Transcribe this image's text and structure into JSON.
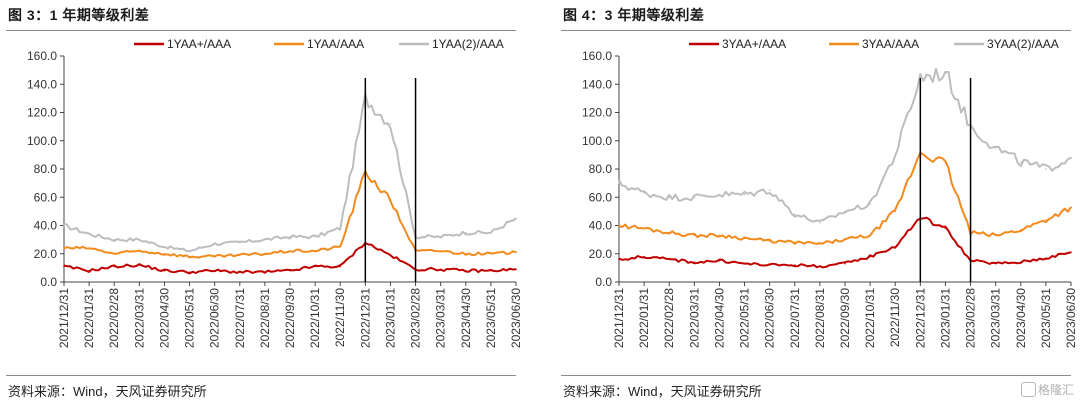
{
  "panels": [
    {
      "title": "图 3：1 年期等级利差",
      "source": "资料来源：Wind，天风证券研究所",
      "chart_data": {
        "type": "line",
        "x": [
          "2021/12/31",
          "2022/01/31",
          "2022/02/28",
          "2022/03/31",
          "2022/04/30",
          "2022/05/31",
          "2022/06/30",
          "2022/07/31",
          "2022/08/31",
          "2022/09/30",
          "2022/10/31",
          "2022/11/30",
          "2022/12/31",
          "2023/01/31",
          "2023/02/28",
          "2023/03/31",
          "2023/04/30",
          "2023/05/31",
          "2023/06/30"
        ],
        "ylim": [
          0,
          160
        ],
        "yticks": [
          "0.0",
          "20.0",
          "40.0",
          "60.0",
          "80.0",
          "100.0",
          "120.0",
          "140.0",
          "160.0"
        ],
        "legend": "top",
        "grid": false,
        "vlines": [
          "2022/12/31",
          "2023/02/28"
        ],
        "series": [
          {
            "name": "1YAA+/AAA",
            "color": "#c00000",
            "values": [
              11,
              8,
              11,
              12,
              8,
              7,
              8,
              7,
              7,
              8,
              11,
              11,
              28,
              19,
              9,
              9,
              8,
              8,
              9
            ]
          },
          {
            "name": "1YAA/AAA",
            "color": "#f28a1c",
            "values": [
              24,
              24,
              20,
              22,
              20,
              18,
              18,
              19,
              20,
              22,
              22,
              25,
              78,
              58,
              22,
              22,
              20,
              20,
              21
            ]
          },
          {
            "name": "1YAA(2)/AAA",
            "color": "#bdbdbd",
            "values": [
              40,
              34,
              30,
              30,
              25,
              22,
              27,
              28,
              30,
              32,
              32,
              38,
              130,
              112,
              32,
              32,
              35,
              35,
              45
            ]
          }
        ]
      }
    },
    {
      "title": "图 4：3 年期等级利差",
      "source": "资料来源：Wind，天风证券研究所",
      "chart_data": {
        "type": "line",
        "x": [
          "2021/12/31",
          "2022/01/31",
          "2022/02/28",
          "2022/03/31",
          "2022/04/30",
          "2022/05/31",
          "2022/06/30",
          "2022/07/31",
          "2022/08/31",
          "2022/09/30",
          "2022/10/31",
          "2022/11/30",
          "2022/12/31",
          "2023/01/31",
          "2023/02/28",
          "2023/03/31",
          "2023/04/30",
          "2023/05/31",
          "2023/06/30"
        ],
        "ylim": [
          0,
          160
        ],
        "yticks": [
          "0.0",
          "20.0",
          "40.0",
          "60.0",
          "80.0",
          "100.0",
          "120.0",
          "140.0",
          "160.0"
        ],
        "legend": "top",
        "grid": false,
        "vlines": [
          "2022/12/31",
          "2023/02/28"
        ],
        "series": [
          {
            "name": "3YAA+/AAA",
            "color": "#c00000",
            "values": [
              16,
              18,
              16,
              14,
              15,
              13,
              12,
              12,
              11,
              13,
              18,
              25,
              46,
              38,
              15,
              13,
              14,
              17,
              21
            ]
          },
          {
            "name": "3YAA/AAA",
            "color": "#f28a1c",
            "values": [
              40,
              38,
              35,
              33,
              33,
              31,
              29,
              28,
              27,
              30,
              33,
              50,
              92,
              84,
              35,
              33,
              37,
              44,
              53
            ]
          },
          {
            "name": "3YAA(2)/AAA",
            "color": "#bdbdbd",
            "values": [
              70,
              63,
              60,
              60,
              62,
              62,
              65,
              48,
              42,
              50,
              55,
              90,
              145,
              148,
              110,
              95,
              85,
              80,
              88
            ]
          }
        ]
      }
    }
  ],
  "watermark": "格隆汇"
}
